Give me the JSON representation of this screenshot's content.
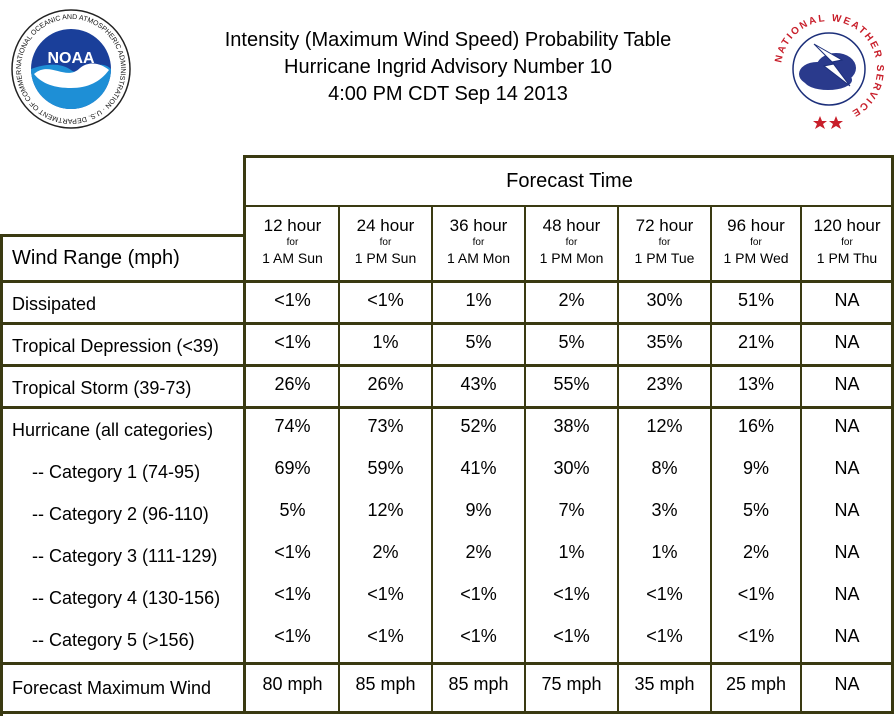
{
  "title": {
    "line1": "Intensity (Maximum Wind Speed) Probability Table",
    "line2": "Hurricane Ingrid Advisory Number 10",
    "line3": "4:00 PM CDT Sep 14 2013"
  },
  "logos": {
    "noaa": {
      "wordmark": "NOAA",
      "ring_text": "NATIONAL OCEANIC AND ATMOSPHERIC ADMINISTRATION · U.S. DEPARTMENT OF COMMERCE ·"
    },
    "nws": {
      "ring_text": "NATIONAL WEATHER SERVICE"
    }
  },
  "table": {
    "forecast_time_label": "Forecast Time",
    "wind_range_label": "Wind Range (mph)",
    "columns": [
      {
        "hours": "12 hour",
        "for": "for",
        "when": "1 AM Sun"
      },
      {
        "hours": "24 hour",
        "for": "for",
        "when": "1 PM Sun"
      },
      {
        "hours": "36 hour",
        "for": "for",
        "when": "1 AM Mon"
      },
      {
        "hours": "48 hour",
        "for": "for",
        "when": "1 PM Mon"
      },
      {
        "hours": "72 hour",
        "for": "for",
        "when": "1 PM Tue"
      },
      {
        "hours": "96 hour",
        "for": "for",
        "when": "1 PM Wed"
      },
      {
        "hours": "120 hour",
        "for": "for",
        "when": "1 PM Thu"
      }
    ],
    "rows": [
      {
        "label": "Dissipated",
        "values": [
          "<1%",
          "<1%",
          "1%",
          "2%",
          "30%",
          "51%",
          "NA"
        ]
      },
      {
        "label": "Tropical Depression (<39)",
        "values": [
          "<1%",
          "1%",
          "5%",
          "5%",
          "35%",
          "21%",
          "NA"
        ]
      },
      {
        "label": "Tropical Storm (39-73)",
        "values": [
          "26%",
          "26%",
          "43%",
          "55%",
          "23%",
          "13%",
          "NA"
        ]
      },
      {
        "label": "Hurricane (all categories)",
        "values": [
          "74%",
          "73%",
          "52%",
          "38%",
          "12%",
          "16%",
          "NA"
        ]
      },
      {
        "label": "-- Category 1 (74-95)",
        "values": [
          "69%",
          "59%",
          "41%",
          "30%",
          "8%",
          "9%",
          "NA"
        ]
      },
      {
        "label": "-- Category 2 (96-110)",
        "values": [
          "5%",
          "12%",
          "9%",
          "7%",
          "3%",
          "5%",
          "NA"
        ]
      },
      {
        "label": "-- Category 3 (111-129)",
        "values": [
          "<1%",
          "2%",
          "2%",
          "1%",
          "1%",
          "2%",
          "NA"
        ]
      },
      {
        "label": "-- Category 4 (130-156)",
        "values": [
          "<1%",
          "<1%",
          "<1%",
          "<1%",
          "<1%",
          "<1%",
          "NA"
        ]
      },
      {
        "label": "-- Category 5 (>156)",
        "values": [
          "<1%",
          "<1%",
          "<1%",
          "<1%",
          "<1%",
          "<1%",
          "NA"
        ]
      },
      {
        "label": "Forecast Maximum Wind",
        "values": [
          "80 mph",
          "85 mph",
          "85 mph",
          "75 mph",
          "35 mph",
          "25 mph",
          "NA"
        ]
      }
    ]
  }
}
